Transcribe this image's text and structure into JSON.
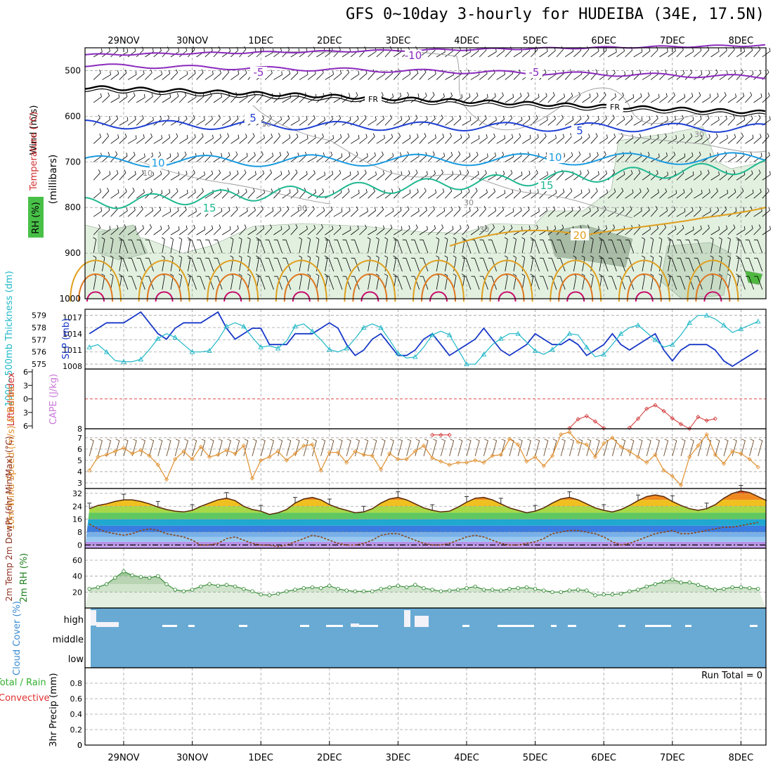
{
  "title": "GFS 0~10day 3-hourly for HUDEIBA (34E, 17.5N)",
  "dates": [
    "29NOV",
    "30NOV",
    "1DEC",
    "2DEC",
    "3DEC",
    "4DEC",
    "5DEC",
    "6DEC",
    "7DEC",
    "8DEC"
  ],
  "panel_labels": {
    "wind": "Wind (m/s)",
    "temperature": "Temperature (°C)",
    "rh": "RH (%)",
    "millibars": "(millibars)",
    "thickness": "1000~500mb Thickness (dm)",
    "slp": "SLP (mb)",
    "lifted": "Lifted Index",
    "cape": "CAPE (J/kg)",
    "wind10": "10m Wind Speed (m/s) & Barbs",
    "temp2m": "2m Temp 2m DewPt (6hr Min/Max) (°C)",
    "rh2m": "2m RH (%)",
    "cloud": "Cloud Cover (%)",
    "precip": "3hr Precip (mm)",
    "precip_legend_total": "Total / Rain",
    "precip_legend_conv": "Convective",
    "run_total": "Run Total = 0"
  },
  "chart_data": [
    {
      "type": "heatmap",
      "name": "pressure-cross-section",
      "ylabel": "millibars",
      "y_ticks": [
        500,
        600,
        700,
        800,
        900,
        1000
      ],
      "ylim": [
        450,
        1000
      ],
      "temperature_contours": [
        {
          "value": -10,
          "label": "-10",
          "color": "#8b2bbd"
        },
        {
          "value": -5,
          "label": "-5",
          "color": "#8b2bbd"
        },
        {
          "value": 0,
          "label": "FR",
          "color": "#000000"
        },
        {
          "value": 5,
          "label": "5",
          "color": "#1e3fd4"
        },
        {
          "value": 10,
          "label": "10",
          "color": "#1a9be0"
        },
        {
          "value": 15,
          "label": "15",
          "color": "#20b890"
        },
        {
          "value": 20,
          "label": "20",
          "color": "#e0a020"
        }
      ],
      "rh_contour_labels": [
        "10",
        "30"
      ]
    },
    {
      "type": "line",
      "name": "thickness-slp",
      "thickness_ticks": [
        575,
        576,
        577,
        578,
        579
      ],
      "slp_ticks": [
        1008,
        1011,
        1014,
        1017
      ],
      "series": [
        {
          "name": "SLP",
          "color": "#1838c8",
          "values": [
            1014,
            1015,
            1016,
            1016,
            1016,
            1017,
            1018,
            1016,
            1014,
            1013,
            1015,
            1016,
            1016,
            1016,
            1017,
            1018,
            1015,
            1013,
            1014,
            1015,
            1015,
            1012,
            1012,
            1012,
            1014,
            1014,
            1014,
            1015,
            1016,
            1015,
            1012,
            1010,
            1011,
            1013,
            1014,
            1012,
            1010,
            1010,
            1011,
            1013,
            1014,
            1012,
            1010,
            1011,
            1012,
            1013,
            1015,
            1013,
            1011,
            1010,
            1011,
            1012,
            1014,
            1013,
            1012,
            1012,
            1013,
            1012,
            1010,
            1011,
            1012,
            1014,
            1012,
            1011,
            1012,
            1013,
            1014,
            1011,
            1009,
            1011,
            1012,
            1012,
            1012,
            1011,
            1009,
            1008,
            1009,
            1010,
            1011,
            1012
          ]
        },
        {
          "name": "Thickness",
          "color": "#20b8c8",
          "values": [
            576.4,
            576.6,
            576,
            575.3,
            575.2,
            575.2,
            575.4,
            576.2,
            577.1,
            577.5,
            577.2,
            576.6,
            576,
            576,
            576.1,
            577,
            578.1,
            578.4,
            578.1,
            577.2,
            576.4,
            576.5,
            576.3,
            576.9,
            578.1,
            578.3,
            577.7,
            577,
            576.2,
            576,
            576.3,
            577.1,
            578,
            578.3,
            578,
            577,
            575.9,
            575.5,
            575.6,
            576.4,
            577.4,
            577.7,
            577.4,
            576.2,
            575,
            575,
            575.8,
            576.6,
            577.1,
            577.5,
            577.5,
            576.8,
            576.1,
            575.8,
            576.2,
            576.8,
            577.5,
            577.4,
            576.4,
            575.6,
            575.8,
            576.6,
            577.5,
            578,
            578.2,
            577.6,
            577,
            576.4,
            576.6,
            577.4,
            578.4,
            579,
            579,
            578.7,
            578.2,
            577.6,
            577.9,
            578.2,
            578.5,
            578.6
          ]
        }
      ]
    },
    {
      "type": "line",
      "name": "lifted-cape",
      "lifted_ticks": [
        -6,
        -3,
        0,
        3,
        6
      ],
      "cape_ticks": [
        8
      ],
      "series": [
        {
          "name": "Lifted Index",
          "color": "#d03030",
          "segments": [
            {
              "x": [
                40,
                41,
                42
              ],
              "values": [
                8,
                8,
                8
              ]
            },
            {
              "x": [
                56,
                57,
                58,
                59,
                60
              ],
              "values": [
                6.5,
                4.5,
                3.8,
                5,
                6.5
              ]
            },
            {
              "x": [
                63,
                64,
                65,
                66,
                67,
                68,
                69,
                70,
                71,
                72,
                73
              ],
              "values": [
                6.4,
                4.4,
                2.2,
                1.4,
                2.7,
                4.3,
                5.6,
                6.6,
                4,
                4.8,
                4.4
              ]
            }
          ]
        }
      ]
    },
    {
      "type": "line",
      "name": "wind10m",
      "y_ticks": [
        3,
        4,
        5,
        6,
        7
      ],
      "ylim": [
        2.5,
        7.8
      ],
      "series": [
        {
          "name": "10m Wind Speed",
          "color": "#e09030",
          "values": [
            4.1,
            5.3,
            5.5,
            5.8,
            6.1,
            5.6,
            5.9,
            5.4,
            4.6,
            3.3,
            5.1,
            5.8,
            5.1,
            6.2,
            5.3,
            5.5,
            5.9,
            5.6,
            6.3,
            3.4,
            5,
            5.3,
            5.8,
            5,
            5.6,
            6.3,
            6.4,
            4.1,
            5.7,
            5.7,
            4.8,
            5.8,
            5.5,
            5.4,
            4.2,
            5.6,
            5.1,
            5.1,
            5.8,
            6.3,
            5.2,
            4.9,
            4.6,
            4.8,
            4.8,
            5,
            4.8,
            5.4,
            5.5,
            6.9,
            6.4,
            4.9,
            5.3,
            4.5,
            5.4,
            7.3,
            7.5,
            6.6,
            6.4,
            5.3,
            6.5,
            7,
            6.2,
            5.8,
            5.3,
            4.8,
            5.5,
            4.1,
            3.6,
            2.8,
            5.3,
            6.3,
            7.3,
            5.5,
            4.7,
            5.8,
            5.6,
            5.1,
            4.4,
            5
          ]
        }
      ]
    },
    {
      "type": "line",
      "name": "temp2m",
      "y_ticks": [
        0,
        8,
        16,
        24,
        32
      ],
      "ylim": [
        -2,
        35
      ],
      "series": [
        {
          "name": "2m Temp",
          "color": "#5a2a0a",
          "values": [
            22.5,
            24.5,
            25.5,
            27,
            28,
            28,
            27,
            25.5,
            23.5,
            22,
            21,
            20.5,
            21.5,
            24,
            26,
            28,
            29,
            27.5,
            24,
            22,
            21,
            19,
            20,
            22,
            26,
            28.5,
            29.5,
            28,
            25,
            23,
            21.5,
            20,
            20.5,
            22.5,
            26,
            28.5,
            29.5,
            28,
            25.5,
            23,
            21.5,
            20.5,
            21,
            23.5,
            26.5,
            29,
            29.5,
            28,
            25.5,
            23,
            21.5,
            20,
            21,
            23,
            26,
            28.5,
            29.5,
            28,
            25.5,
            23,
            21.5,
            20.5,
            22,
            24.5,
            27.5,
            30,
            31,
            30,
            27,
            24.5,
            22.5,
            21.5,
            22.5,
            25,
            29,
            32,
            33.5,
            32.5,
            30,
            27.5
          ]
        },
        {
          "name": "2m DewPt",
          "color": "#8b4513",
          "values": [
            13,
            10,
            8,
            7,
            6,
            7,
            9,
            10,
            9,
            7,
            6,
            5,
            3,
            0,
            0,
            1,
            4,
            5,
            3,
            1,
            0,
            0,
            -1,
            0,
            2,
            4,
            6,
            5,
            3,
            1,
            0,
            0,
            1,
            3,
            6,
            7,
            7,
            5,
            3,
            1,
            0,
            0,
            1,
            3,
            5,
            6,
            5,
            3,
            1,
            0,
            0,
            1,
            2,
            4,
            7,
            8,
            9,
            9,
            8,
            7,
            5,
            2,
            0,
            1,
            3,
            5,
            7,
            8,
            9,
            7,
            7,
            8,
            9,
            10,
            11,
            11,
            12,
            13,
            14,
            15
          ]
        }
      ]
    },
    {
      "type": "area",
      "name": "rh2m",
      "y_ticks": [
        20,
        40,
        60
      ],
      "ylim": [
        0,
        75
      ],
      "series": [
        {
          "name": "2m RH",
          "color": "#208020",
          "values": [
            24,
            26,
            30,
            38,
            46,
            41,
            39,
            38,
            40,
            30,
            23,
            21,
            23,
            27,
            30,
            28,
            29,
            27,
            24,
            21,
            17,
            16,
            18,
            21,
            23,
            25,
            26,
            25,
            28,
            24,
            22,
            21,
            21,
            21,
            24,
            26,
            28,
            26,
            29,
            25,
            23,
            21,
            22,
            23,
            25,
            27,
            23,
            23,
            22,
            24,
            25,
            26,
            24,
            22,
            20,
            20,
            22,
            23,
            22,
            16,
            17,
            17,
            18,
            21,
            23,
            27,
            30,
            33,
            36,
            32,
            32,
            29,
            26,
            23,
            24,
            26,
            26,
            25,
            24,
            27
          ]
        }
      ]
    },
    {
      "type": "bar",
      "name": "cloud",
      "categories": [
        "high",
        "middle",
        "low"
      ]
    },
    {
      "type": "bar",
      "name": "precip",
      "y_ticks": [
        0,
        0.2,
        0.4,
        0.6,
        0.8
      ],
      "ylim": [
        0,
        1
      ]
    }
  ]
}
